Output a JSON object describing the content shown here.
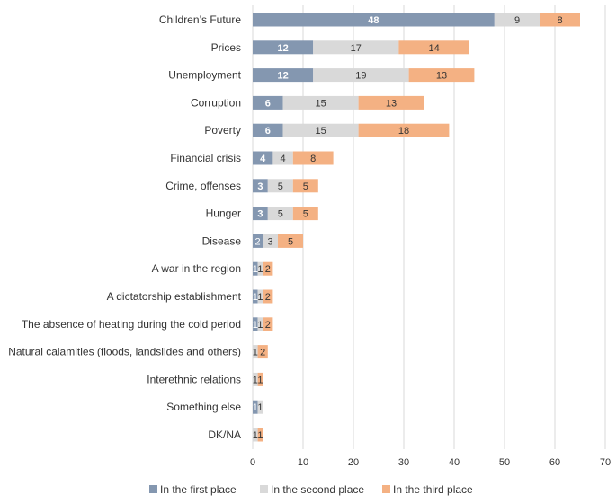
{
  "chart_data": {
    "type": "bar",
    "orientation": "horizontal",
    "stacked": true,
    "categories": [
      "Children’s Future",
      "Prices",
      "Unemployment",
      "Corruption",
      "Poverty",
      "Financial crisis",
      "Crime, offenses",
      "Hunger",
      "Disease",
      "A war in the region",
      "A dictatorship establishment",
      "The absence of heating during the cold period",
      "Natural calamities (floods, landslides and others)",
      "Interethnic relations",
      "Something else",
      "DK/NA"
    ],
    "series": [
      {
        "name": "In the first place",
        "color": "#8497b0",
        "label_color": "#ffffff",
        "values": [
          48,
          12,
          12,
          6,
          6,
          4,
          3,
          3,
          2,
          1,
          1,
          1,
          0,
          0,
          1,
          0
        ]
      },
      {
        "name": "In the second place",
        "color": "#d9d9d9",
        "label_color": "#333333",
        "values": [
          9,
          17,
          19,
          15,
          15,
          4,
          5,
          5,
          3,
          1,
          1,
          1,
          1,
          1,
          1,
          1
        ]
      },
      {
        "name": "In the third place",
        "color": "#f4b183",
        "label_color": "#333333",
        "values": [
          8,
          14,
          13,
          13,
          18,
          8,
          5,
          5,
          5,
          2,
          2,
          2,
          2,
          1,
          0,
          1
        ]
      }
    ],
    "xlim": [
      0,
      70
    ],
    "xticks": [
      0,
      10,
      20,
      30,
      40,
      50,
      60,
      70
    ],
    "grid": true,
    "legend_position": "bottom",
    "title": "",
    "xlabel": "",
    "ylabel": ""
  }
}
